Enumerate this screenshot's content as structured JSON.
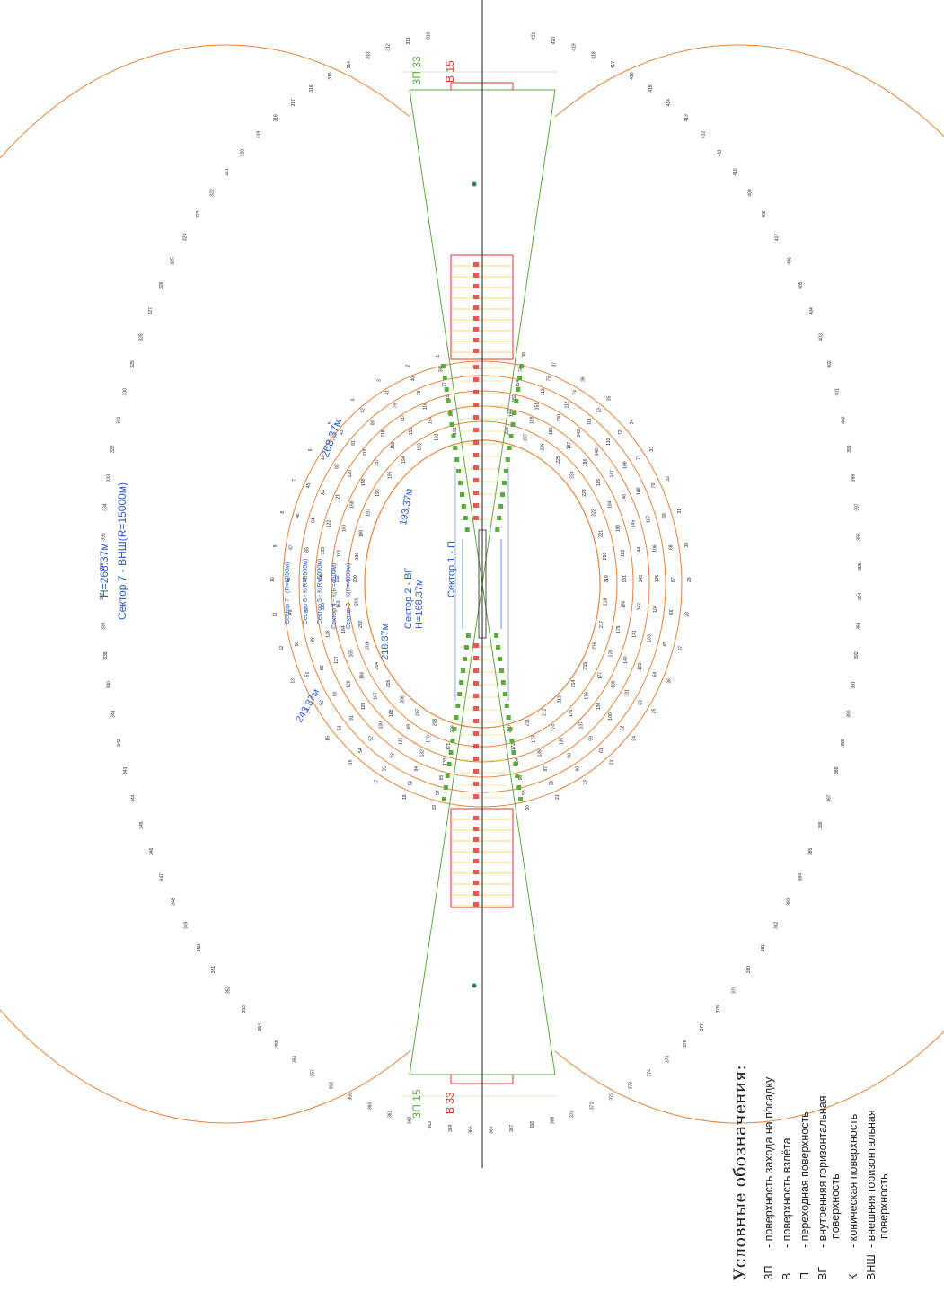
{
  "labels": {
    "zp_top": "ЗП 33",
    "v_top": "В 15",
    "zp_bottom": "ЗП 15",
    "v_bottom": "В 33",
    "outer_h": "Н=268.37м",
    "outer_sector": "Сектор 7 - ВНШ(R=15000м)",
    "sector7": "Сектор 7 - (R=6000м)",
    "sector6": "Сектор 6 - К(R=5500м)",
    "sector5": "Сектор 5 - К(R=5000м)",
    "sector4": "Сектор 4 - К(R=4500м)",
    "sector3": "Сектор 3 - К(R=4000м)",
    "sector2": "Сектор 2 - ВГ",
    "sector2_h": "Н=168.37м",
    "sector1": "Сектор 1 - П",
    "h_268": "268.37м",
    "h_243": "243.37м",
    "h_218": "218.37м",
    "h_193": "193.37м"
  },
  "legend": {
    "title": "Условные обозначения:",
    "items": [
      {
        "code": "ЗП",
        "lines": [
          "- поверхность захода на посадку"
        ]
      },
      {
        "code": "В",
        "lines": [
          "- поверхность взлёта"
        ]
      },
      {
        "code": "П",
        "lines": [
          "- переходная поверхность"
        ]
      },
      {
        "code": "ВГ",
        "lines": [
          "- внутренняя горизонтальная",
          "поверхность"
        ]
      },
      {
        "code": "К",
        "lines": [
          "- коническая поверхность"
        ]
      },
      {
        "code": "ВНШ",
        "lines": [
          "- внешняя горизонтальная",
          "поверхность"
        ]
      }
    ]
  },
  "outer_marks": {
    "start": 310,
    "end": 421
  },
  "colors": {
    "orange": "#e8833a",
    "green": "#5aaa3c",
    "red": "#e03030",
    "blue": "#2a5bd7",
    "yellow": "#e8d23a",
    "axis": "#222222"
  }
}
